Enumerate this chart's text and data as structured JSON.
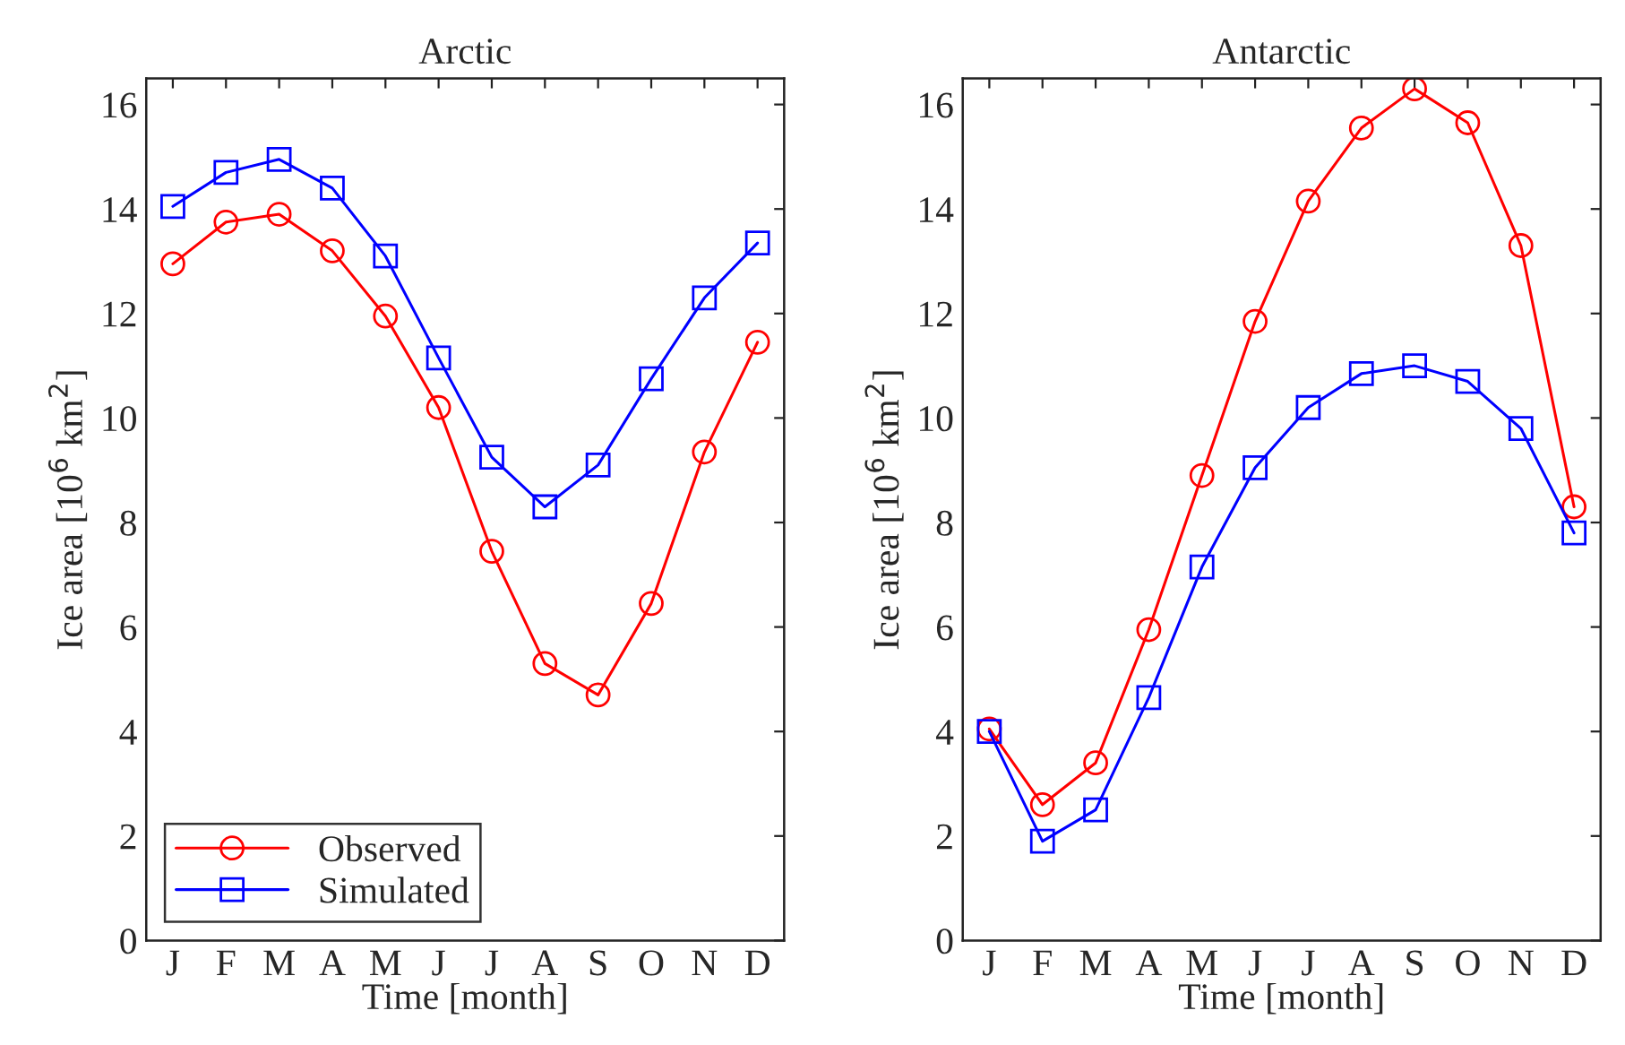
{
  "chart_data": [
    {
      "type": "line",
      "title": "Arctic",
      "xlabel": "Time [month]",
      "ylabel": "Ice area [10$^{6}$ km$^{2}$]",
      "categories": [
        "J",
        "F",
        "M",
        "A",
        "M",
        "J",
        "J",
        "A",
        "S",
        "O",
        "N",
        "D"
      ],
      "ylim": [
        0,
        16.5
      ],
      "yticks": [
        0,
        2,
        4,
        6,
        8,
        10,
        12,
        14,
        16
      ],
      "grid": false,
      "legend": "bottom left",
      "series": [
        {
          "name": "Observed",
          "color": "#ff0000",
          "marker": "circle",
          "values": [
            12.95,
            13.75,
            13.9,
            13.2,
            11.95,
            10.2,
            7.45,
            5.3,
            4.7,
            6.45,
            9.35,
            11.45
          ]
        },
        {
          "name": "Simulated",
          "color": "#0000ff",
          "marker": "square",
          "values": [
            14.05,
            14.7,
            14.95,
            14.4,
            13.1,
            11.15,
            9.25,
            8.3,
            9.1,
            10.75,
            12.3,
            13.35
          ]
        }
      ]
    },
    {
      "type": "line",
      "title": "Antarctic",
      "xlabel": "Time [month]",
      "ylabel": "Ice area [10$^{6}$ km$^{2}$]",
      "categories": [
        "J",
        "F",
        "M",
        "A",
        "M",
        "J",
        "J",
        "A",
        "S",
        "O",
        "N",
        "D"
      ],
      "ylim": [
        0,
        16.5
      ],
      "yticks": [
        0,
        2,
        4,
        6,
        8,
        10,
        12,
        14,
        16
      ],
      "grid": false,
      "series": [
        {
          "color": "#ff0000",
          "marker": "circle",
          "values": [
            4.05,
            2.6,
            3.4,
            5.95,
            8.9,
            11.85,
            14.15,
            15.55,
            16.3,
            15.65,
            13.3,
            8.3
          ]
        },
        {
          "color": "#0000ff",
          "marker": "square",
          "values": [
            4.0,
            1.9,
            2.5,
            4.65,
            7.15,
            9.05,
            10.2,
            10.85,
            11.0,
            10.7,
            9.8,
            7.8
          ]
        }
      ]
    }
  ]
}
